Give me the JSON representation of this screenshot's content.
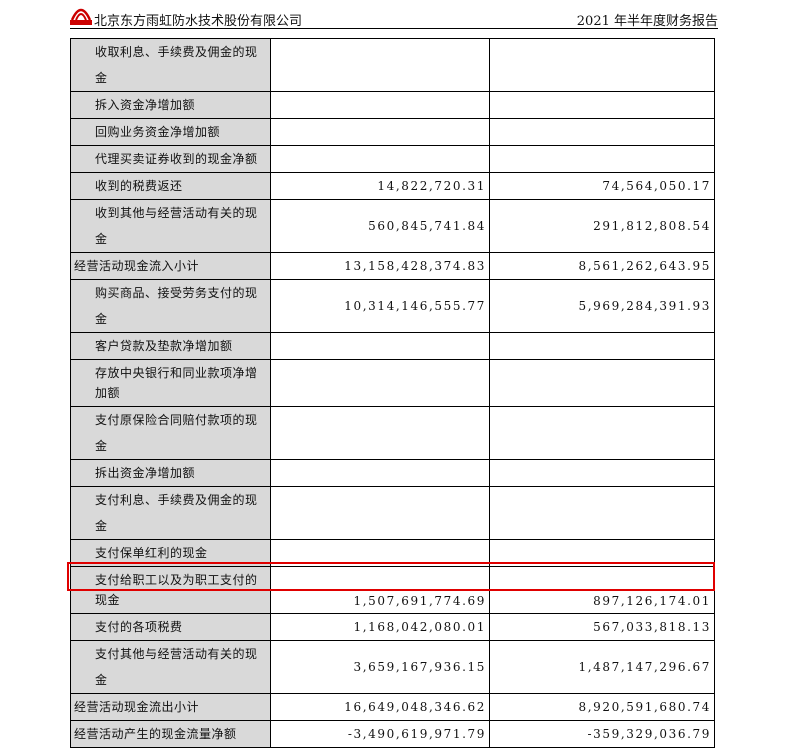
{
  "header": {
    "company": "北京东方雨虹防水技术股份有限公司",
    "report": "2021 年半年度财务报告",
    "logo_text": "东方雨虹"
  },
  "rows": [
    {
      "label": "收取利息、手续费及佣金的现金",
      "a": "",
      "b": "",
      "indent": true
    },
    {
      "label": "拆入资金净增加额",
      "a": "",
      "b": "",
      "indent": true
    },
    {
      "label": "回购业务资金净增加额",
      "a": "",
      "b": "",
      "indent": true
    },
    {
      "label": "代理买卖证券收到的现金净额",
      "a": "",
      "b": "",
      "indent": true
    },
    {
      "label": "收到的税费返还",
      "a": "14,822,720.31",
      "b": "74,564,050.17",
      "indent": true
    },
    {
      "label": "收到其他与经营活动有关的现金",
      "a": "560,845,741.84",
      "b": "291,812,808.54",
      "indent": true
    },
    {
      "label": "经营活动现金流入小计",
      "a": "13,158,428,374.83",
      "b": "8,561,262,643.95",
      "indent": false
    },
    {
      "label": "购买商品、接受劳务支付的现金",
      "a": "10,314,146,555.77",
      "b": "5,969,284,391.93",
      "indent": true
    },
    {
      "label": "客户贷款及垫款净增加额",
      "a": "",
      "b": "",
      "indent": true
    },
    {
      "label": "存放中央银行和同业款项净增加额",
      "a": "",
      "b": "",
      "indent": true,
      "tall": true
    },
    {
      "label": "支付原保险合同赔付款项的现金",
      "a": "",
      "b": "",
      "indent": true
    },
    {
      "label": "拆出资金净增加额",
      "a": "",
      "b": "",
      "indent": true
    },
    {
      "label": "支付利息、手续费及佣金的现金",
      "a": "",
      "b": "",
      "indent": true
    },
    {
      "label": "支付保单红利的现金",
      "a": "",
      "b": "",
      "indent": true
    },
    {
      "label": "支付给职工以及为职工支付的现金",
      "a": "1,507,691,774.69",
      "b": "897,126,174.01",
      "indent": true,
      "tall": true
    },
    {
      "label": "支付的各项税费",
      "a": "1,168,042,080.01",
      "b": "567,033,818.13",
      "indent": true
    },
    {
      "label": "支付其他与经营活动有关的现金",
      "a": "3,659,167,936.15",
      "b": "1,487,147,296.67",
      "indent": true
    },
    {
      "label": "经营活动现金流出小计",
      "a": "16,649,048,346.62",
      "b": "8,920,591,680.74",
      "indent": false
    },
    {
      "label": "经营活动产生的现金流量净额",
      "a": "-3,490,619,971.79",
      "b": "-359,329,036.79",
      "indent": false,
      "highlighted": true
    }
  ],
  "colors": {
    "highlight": "#e00000",
    "label_bg": "#d9d9d9"
  }
}
